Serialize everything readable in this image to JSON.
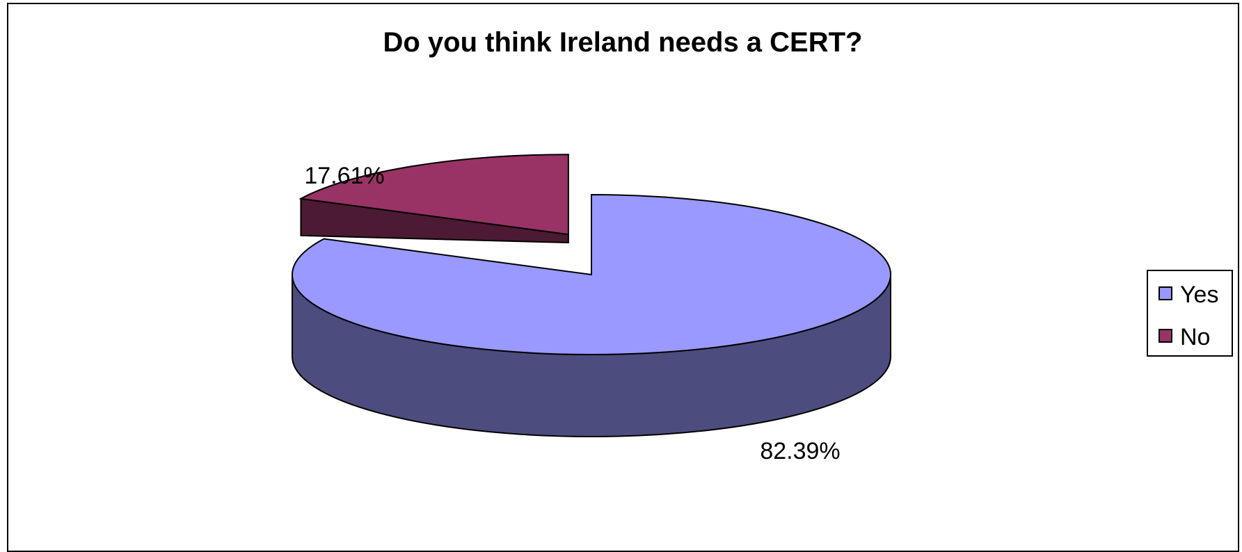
{
  "chart_data": {
    "type": "pie",
    "title": "Do you think Ireland needs a CERT?",
    "categories": [
      "Yes",
      "No"
    ],
    "values": [
      82.39,
      17.61
    ],
    "data_labels": [
      "82.39%",
      "17.61%"
    ],
    "colors": [
      "#9999FF",
      "#993366"
    ],
    "side_colors": [
      "#4C4C7F",
      "#4C1A33"
    ],
    "legend": {
      "position": "right",
      "entries": [
        "Yes",
        "No"
      ]
    },
    "style": "3d-exploded"
  }
}
